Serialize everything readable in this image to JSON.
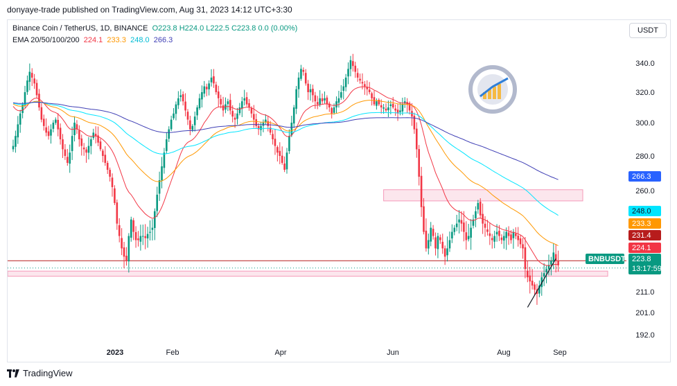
{
  "header": {
    "text": "donyaye-trade published on TradingView.com, Aug 31, 2023 14:12 UTC+3:30"
  },
  "legend": {
    "symbol": "Binance Coin / TetherUS, 1D, BINANCE",
    "ohlc": "O223.8 H224.0 L222.5 C223.8 0.0 (0.00%)",
    "ema_label": "EMA 20/50/100/200",
    "ema_values": [
      "224.1",
      "233.3",
      "248.0",
      "266.3"
    ]
  },
  "currency_button": "USDT",
  "footer": {
    "brand": "TradingView"
  },
  "colors": {
    "up": "#089981",
    "down": "#f23645",
    "ema20": "#f23645",
    "ema50": "#ff9800",
    "ema100": "#00e5ff",
    "ema200": "#3f3fb5",
    "zone_fill": "#fce4ec",
    "zone_stroke": "#f48fb1",
    "support_line": "#b71c1c"
  },
  "chart_data": {
    "type": "candlestick",
    "symbol": "BNBUSDT",
    "timeframe": "1D",
    "y_ticks": [
      192.0,
      201.0,
      211.0,
      260.0,
      280.0,
      300.0,
      320.0,
      340.0
    ],
    "x_ticks": [
      "2023",
      "Feb",
      "Apr",
      "Jun",
      "Aug",
      "Sep"
    ],
    "price_labels": [
      {
        "value": "266.3",
        "series": "ema200",
        "color": "#2962ff"
      },
      {
        "value": "248.0",
        "series": "ema100",
        "color": "#00e5ff"
      },
      {
        "value": "233.3",
        "series": "ema50",
        "color": "#ff9800"
      },
      {
        "value": "231.4",
        "series": "high",
        "color": "#b71c1c"
      },
      {
        "value": "224.1",
        "series": "ema20",
        "color": "#f23645"
      },
      {
        "value": "223.8",
        "series": "last",
        "color": "#089981"
      }
    ],
    "countdown": "13:17:59",
    "symbol_badge": "BNBUSDT",
    "horizontal_line": 226.0,
    "zones": [
      {
        "from": 255.0,
        "to": 260.5
      },
      {
        "from": 218.5,
        "to": 221.0
      }
    ],
    "trendline": {
      "from": [
        -14,
        203.5
      ],
      "to": [
        -2,
        227.0
      ]
    },
    "closes": [
      286,
      292,
      299,
      306,
      312,
      320,
      328,
      334,
      330,
      326,
      318,
      310,
      302,
      298,
      294,
      292,
      296,
      300,
      302,
      296,
      290,
      284,
      280,
      276,
      282,
      292,
      300,
      296,
      290,
      286,
      284,
      282,
      286,
      290,
      294,
      292,
      288,
      284,
      280,
      276,
      272,
      268,
      262,
      254,
      244,
      238,
      232,
      228,
      226,
      238,
      246,
      240,
      236,
      236,
      238,
      238,
      237,
      239,
      240,
      242,
      250,
      258,
      266,
      274,
      282,
      290,
      296,
      302,
      306,
      312,
      316,
      318,
      314,
      308,
      302,
      296,
      298,
      304,
      310,
      316,
      320,
      324,
      322,
      326,
      330,
      326,
      320,
      316,
      312,
      308,
      312,
      314,
      308,
      304,
      302,
      306,
      310,
      314,
      316,
      312,
      310,
      306,
      302,
      298,
      296,
      298,
      300,
      302,
      298,
      294,
      290,
      286,
      282,
      280,
      276,
      272,
      282,
      292,
      300,
      310,
      322,
      330,
      336,
      334,
      326,
      320,
      322,
      318,
      314,
      312,
      316,
      314,
      316,
      312,
      310,
      306,
      310,
      314,
      316,
      320,
      324,
      330,
      336,
      342,
      338,
      334,
      330,
      328,
      326,
      324,
      322,
      320,
      316,
      312,
      314,
      312,
      310,
      310,
      308,
      310,
      312,
      310,
      308,
      306,
      308,
      312,
      314,
      312,
      308,
      304,
      296,
      284,
      268,
      252,
      240,
      232,
      236,
      242,
      238,
      232,
      238,
      236,
      232,
      228,
      232,
      236,
      240,
      242,
      244,
      246,
      244,
      240,
      236,
      238,
      242,
      246,
      250,
      254,
      248,
      244,
      242,
      240,
      238,
      236,
      238,
      240,
      238,
      236,
      238,
      240,
      238,
      236,
      240,
      238,
      236,
      234,
      232,
      222,
      218,
      216,
      214,
      212,
      210,
      214,
      218,
      220,
      222,
      224,
      226,
      230,
      226,
      223.8
    ],
    "ema20_end": 224.1,
    "ema50_end": 233.3,
    "ema100_end": 248.0,
    "ema200_end": 266.3
  }
}
